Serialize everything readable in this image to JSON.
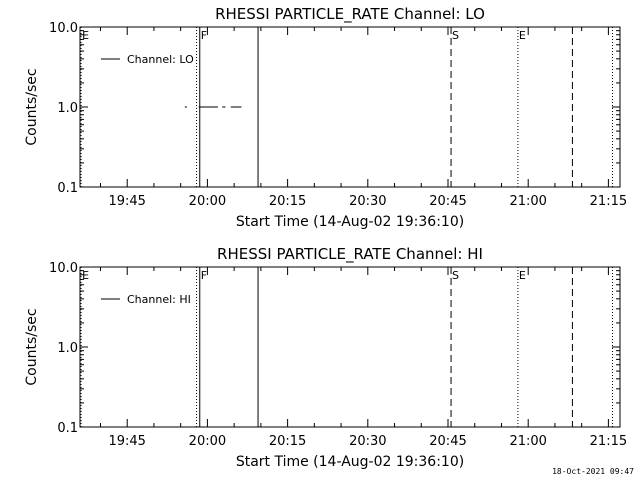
{
  "chart_data": [
    {
      "type": "line",
      "title": "RHESSI PARTICLE_RATE Channel: LO",
      "xlabel": "Start Time (14-Aug-02 19:36:10)",
      "ylabel": "Counts/sec",
      "yscale": "log",
      "ylim": [
        0.1,
        10.0
      ],
      "yticks": [
        "0.1",
        "1.0",
        "10.0"
      ],
      "xrange_minutes_since_start": [
        0,
        101
      ],
      "xticks": [
        {
          "label": "19:45",
          "min": 8.83
        },
        {
          "label": "20:00",
          "min": 23.83
        },
        {
          "label": "20:15",
          "min": 38.83
        },
        {
          "label": "20:30",
          "min": 53.83
        },
        {
          "label": "20:45",
          "min": 68.83
        },
        {
          "label": "21:00",
          "min": 83.83
        },
        {
          "label": "21:15",
          "min": 98.83
        }
      ],
      "legend": {
        "label": "Channel: LO",
        "placement": "top-left"
      },
      "series": [
        {
          "name": "Channel: LO",
          "segments": [
            [
              19.6,
              20.0
            ],
            [
              22.2,
              25.8
            ],
            [
              26.6,
              27.2
            ],
            [
              28.2,
              30.2
            ]
          ],
          "y": 1.0
        }
      ],
      "event_lines": [
        {
          "label": "E",
          "min": 0.2,
          "style": "dotted"
        },
        {
          "label": "",
          "min": 21.8,
          "style": "dotted"
        },
        {
          "label": "F",
          "min": 22.4,
          "style": "solid"
        },
        {
          "label": "",
          "min": 33.3,
          "style": "solid"
        },
        {
          "label": "S",
          "min": 69.4,
          "style": "dashed"
        },
        {
          "label": "E",
          "min": 81.9,
          "style": "dotted"
        },
        {
          "label": "",
          "min": 92.1,
          "style": "dashed"
        },
        {
          "label": "",
          "min": 99.6,
          "style": "dotted"
        }
      ]
    },
    {
      "type": "line",
      "title": "RHESSI PARTICLE_RATE Channel: HI",
      "xlabel": "Start Time (14-Aug-02 19:36:10)",
      "ylabel": "Counts/sec",
      "yscale": "log",
      "ylim": [
        0.1,
        10.0
      ],
      "yticks": [
        "0.1",
        "1.0",
        "10.0"
      ],
      "xrange_minutes_since_start": [
        0,
        101
      ],
      "xticks": [
        {
          "label": "19:45",
          "min": 8.83
        },
        {
          "label": "20:00",
          "min": 23.83
        },
        {
          "label": "20:15",
          "min": 38.83
        },
        {
          "label": "20:30",
          "min": 53.83
        },
        {
          "label": "20:45",
          "min": 68.83
        },
        {
          "label": "21:00",
          "min": 83.83
        },
        {
          "label": "21:15",
          "min": 98.83
        }
      ],
      "legend": {
        "label": "Channel: HI",
        "placement": "top-left"
      },
      "series": [
        {
          "name": "Channel: HI",
          "segments": [],
          "y": null
        }
      ],
      "event_lines": [
        {
          "label": "E",
          "min": 0.2,
          "style": "dotted"
        },
        {
          "label": "",
          "min": 21.8,
          "style": "dotted"
        },
        {
          "label": "F",
          "min": 22.4,
          "style": "solid"
        },
        {
          "label": "",
          "min": 33.3,
          "style": "solid"
        },
        {
          "label": "S",
          "min": 69.4,
          "style": "dashed"
        },
        {
          "label": "E",
          "min": 81.9,
          "style": "dotted"
        },
        {
          "label": "",
          "min": 92.1,
          "style": "dashed"
        },
        {
          "label": "",
          "min": 99.6,
          "style": "dotted"
        }
      ]
    }
  ],
  "footer": {
    "timestamp": "18-Oct-2021 09:47"
  }
}
